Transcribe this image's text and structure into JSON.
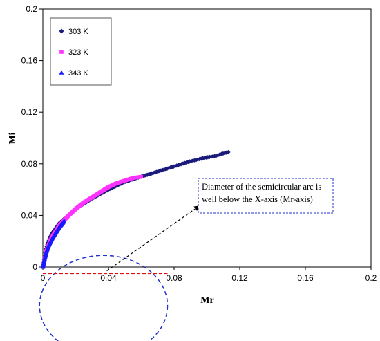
{
  "chart_data": {
    "type": "scatter",
    "title": "",
    "xlabel": "Mr",
    "ylabel": "Mi",
    "xlim": [
      0,
      0.2
    ],
    "ylim": [
      0,
      0.2
    ],
    "x_ticks": [
      "0",
      "0.04",
      "0.08",
      "0.12",
      "0.16",
      "0.2"
    ],
    "y_ticks": [
      "0",
      "0.04",
      "0.08",
      "0.12",
      "0.16",
      "0.2"
    ],
    "grid": false,
    "legend_position": "top-left",
    "series": [
      {
        "name": "303 K",
        "marker": "diamond",
        "color": "#1a1a7a",
        "x": [
          0.0,
          0.002,
          0.005,
          0.01,
          0.02,
          0.03,
          0.04,
          0.05,
          0.06,
          0.07,
          0.08,
          0.09,
          0.1,
          0.105,
          0.11,
          0.113
        ],
        "y": [
          0.0,
          0.015,
          0.025,
          0.034,
          0.045,
          0.053,
          0.06,
          0.066,
          0.07,
          0.074,
          0.078,
          0.082,
          0.085,
          0.086,
          0.088,
          0.089
        ]
      },
      {
        "name": "323 K",
        "marker": "square",
        "color": "#ff33ff",
        "x": [
          0.0,
          0.002,
          0.005,
          0.01,
          0.015,
          0.02,
          0.025,
          0.03,
          0.035,
          0.04,
          0.045,
          0.05,
          0.055,
          0.06
        ],
        "y": [
          0.0,
          0.012,
          0.022,
          0.032,
          0.039,
          0.045,
          0.05,
          0.054,
          0.058,
          0.062,
          0.065,
          0.067,
          0.069,
          0.07
        ]
      },
      {
        "name": "343 K",
        "marker": "triangle",
        "color": "#1a1aff",
        "x": [
          0.0,
          0.001,
          0.002,
          0.003,
          0.004,
          0.006,
          0.008,
          0.01,
          0.012,
          0.013
        ],
        "y": [
          0.0,
          0.006,
          0.011,
          0.015,
          0.018,
          0.023,
          0.027,
          0.031,
          0.034,
          0.036
        ]
      }
    ],
    "annotation": {
      "text_lines": [
        "Diameter of the semicircular arc is",
        "well below the X-axis (Mr-axis)"
      ],
      "circle_center": [
        0.037,
        -0.03
      ],
      "circle_radius": 0.039,
      "diameter_segment": [
        0.0,
        0.076,
        -0.005
      ],
      "arrow_from": [
        0.039,
        -0.003
      ],
      "arrow_to": [
        0.095,
        0.047
      ],
      "circle_color": "#1f2fd0",
      "diameter_color": "#e01010"
    }
  }
}
